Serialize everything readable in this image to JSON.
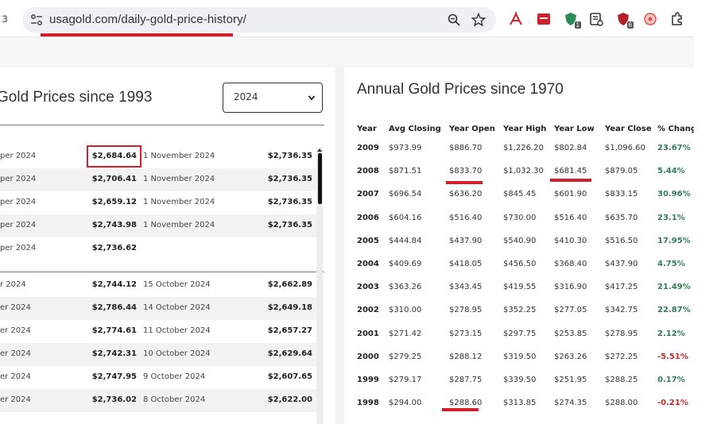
{
  "browser": {
    "back_fragment": "з",
    "url": "usagold.com/daily-gold-price-history/",
    "extension_badges": {
      "shield_count": "1",
      "bug_count": "6"
    }
  },
  "left": {
    "title": "Gold Prices since 1993",
    "year_select": {
      "selected": "2024"
    },
    "rows_group1": [
      {
        "date1": "per 2024",
        "price1": "$2,684.64",
        "date2": "1 November 2024",
        "price2": "$2,736.35"
      },
      {
        "date1": "per 2024",
        "price1": "$2,706.41",
        "date2": "1 November 2024",
        "price2": "$2,736.35"
      },
      {
        "date1": "per 2024",
        "price1": "$2,659.12",
        "date2": "1 November 2024",
        "price2": "$2,736.35"
      },
      {
        "date1": "per 2024",
        "price1": "$2,743.98",
        "date2": "1 November 2024",
        "price2": "$2,736.35"
      },
      {
        "date1": "per 2024",
        "price1": "$2,736.62",
        "date2": "",
        "price2": ""
      }
    ],
    "rows_group2": [
      {
        "date1": "r 2024",
        "price1": "$2,744.12",
        "date2": "15 October 2024",
        "price2": "$2,662.89"
      },
      {
        "date1": "er 2024",
        "price1": "$2,786.44",
        "date2": "14 October 2024",
        "price2": "$2,649.18"
      },
      {
        "date1": "er 2024",
        "price1": "$2,774.61",
        "date2": "11 October 2024",
        "price2": "$2,657.27"
      },
      {
        "date1": "er 2024",
        "price1": "$2,742.31",
        "date2": "10 October 2024",
        "price2": "$2,629.64"
      },
      {
        "date1": "er 2024",
        "price1": "$2,747.95",
        "date2": "9 October 2024",
        "price2": "$2,607.65"
      },
      {
        "date1": "er 2024",
        "price1": "$2,736.02",
        "date2": "8 October 2024",
        "price2": "$2,622.00"
      }
    ]
  },
  "right": {
    "title": "Annual Gold Prices since 1970",
    "headers": [
      "Year",
      "Avg Closing",
      "Year Open",
      "Year High",
      "Year Low",
      "Year Close",
      "% Chang"
    ],
    "rows": [
      {
        "year": "2009",
        "avg": "$973.99",
        "open": "$886.70",
        "high": "$1,226.20",
        "low": "$802.84",
        "close": "$1,096.60",
        "change": "23.67%"
      },
      {
        "year": "2008",
        "avg": "$871.51",
        "open": "$833.70",
        "high": "$1,032.30",
        "low": "$681.45",
        "close": "$879.05",
        "change": "5.44%"
      },
      {
        "year": "2007",
        "avg": "$696.54",
        "open": "$636.20",
        "high": "$845.45",
        "low": "$601.90",
        "close": "$833.15",
        "change": "30.96%"
      },
      {
        "year": "2006",
        "avg": "$604.16",
        "open": "$516.40",
        "high": "$730.00",
        "low": "$516.40",
        "close": "$635.70",
        "change": "23.1%"
      },
      {
        "year": "2005",
        "avg": "$444.84",
        "open": "$437.90",
        "high": "$540.90",
        "low": "$410.30",
        "close": "$516.50",
        "change": "17.95%"
      },
      {
        "year": "2004",
        "avg": "$409.69",
        "open": "$418.05",
        "high": "$456.50",
        "low": "$368.40",
        "close": "$437.90",
        "change": "4.75%"
      },
      {
        "year": "2003",
        "avg": "$363.26",
        "open": "$343.45",
        "high": "$419.55",
        "low": "$316.90",
        "close": "$417.25",
        "change": "21.49%"
      },
      {
        "year": "2002",
        "avg": "$310.00",
        "open": "$278.95",
        "high": "$352.25",
        "low": "$277.05",
        "close": "$342.75",
        "change": "22.87%"
      },
      {
        "year": "2001",
        "avg": "$271.42",
        "open": "$273.15",
        "high": "$297.75",
        "low": "$253.85",
        "close": "$278.95",
        "change": "2.12%"
      },
      {
        "year": "2000",
        "avg": "$279.25",
        "open": "$288.12",
        "high": "$319.50",
        "low": "$263.26",
        "close": "$272.25",
        "change": "-5.51%"
      },
      {
        "year": "1999",
        "avg": "$279.17",
        "open": "$287.75",
        "high": "$339.50",
        "low": "$251.95",
        "close": "$288.25",
        "change": "0.17%"
      },
      {
        "year": "1998",
        "avg": "$294.00",
        "open": "$288.60",
        "high": "$313.85",
        "low": "$274.35",
        "close": "$288.00",
        "change": "-0.21%"
      }
    ]
  },
  "colors": {
    "positive": "#2f7d57",
    "negative": "#c0282b",
    "annotation": "#d0202c"
  }
}
